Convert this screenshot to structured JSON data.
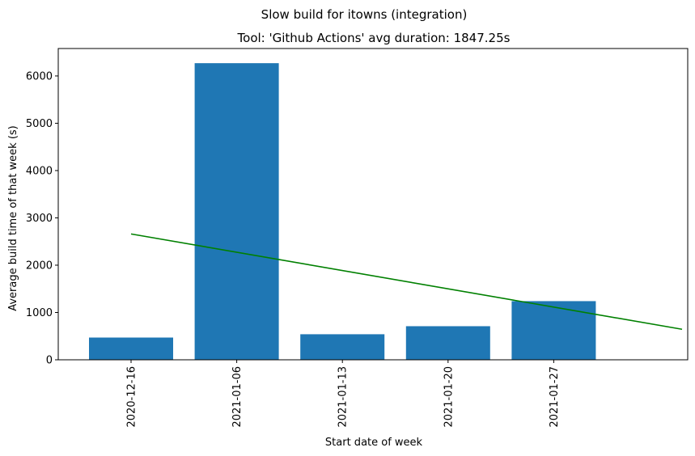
{
  "chart_data": {
    "type": "bar",
    "suptitle": "Slow build for itowns (integration)",
    "title": "Tool: 'Github Actions' avg duration: 1847.25s",
    "xlabel": "Start date of week",
    "ylabel": "Average build time of that week (s)",
    "categories": [
      "2020-12-16",
      "2021-01-06",
      "2021-01-13",
      "2021-01-20",
      "2021-01-27"
    ],
    "values": [
      470,
      6270,
      540,
      710,
      1240
    ],
    "bar_color": "#1f77b4",
    "trend": {
      "color": "#008000",
      "x": [
        "2020-12-16",
        "2021-02-03"
      ],
      "y": [
        2660,
        645
      ]
    },
    "ylim": [
      0,
      6580
    ],
    "yticks": [
      0,
      1000,
      2000,
      3000,
      4000,
      5000,
      6000
    ],
    "grid": false,
    "legend": false
  }
}
